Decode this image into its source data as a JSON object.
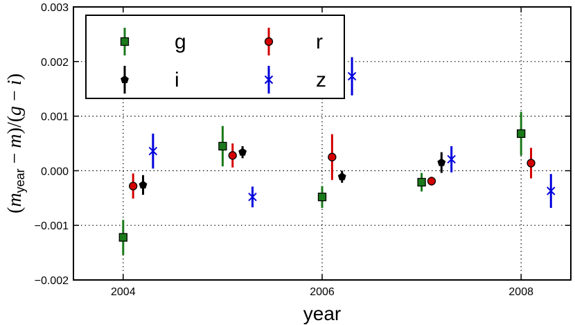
{
  "chart_data": {
    "type": "scatter",
    "title": "",
    "xlabel": "year",
    "ylabel": "(m_year − m)/(g − i)",
    "ylabel_parts": {
      "open": "(",
      "m1": "m",
      "sub": "year",
      "minus1": " − ",
      "m2": "m",
      "mid": ")/(",
      "g": "g",
      "minus2": " − ",
      "i": "i",
      "close": ")"
    },
    "xlim": [
      2003.5,
      2008.5
    ],
    "ylim": [
      -0.002,
      0.003
    ],
    "xticks": [
      2004,
      2006,
      2008
    ],
    "xtick_labels": [
      "2004",
      "2006",
      "2008"
    ],
    "yticks": [
      -0.002,
      -0.001,
      0.0,
      0.001,
      0.002,
      0.003
    ],
    "ytick_labels": [
      "−0.002",
      "−0.001",
      "0.000",
      "0.001",
      "0.002",
      "0.003"
    ],
    "grid": true,
    "grid_style": "dotted",
    "legend": "top-left",
    "series": [
      {
        "name": "g",
        "color": "#1a7a1a",
        "marker": "square",
        "x": [
          2004.0,
          2005.0,
          2006.0,
          2007.0,
          2008.0
        ],
        "y": [
          -0.00122,
          0.00045,
          -0.00048,
          -0.00021,
          0.00068
        ],
        "yerr": [
          0.00032,
          0.00037,
          0.0002,
          0.00017,
          0.0004
        ]
      },
      {
        "name": "r",
        "color": "#d40000",
        "marker": "circle",
        "x": [
          2004.1,
          2005.1,
          2006.1,
          2007.1,
          2008.1
        ],
        "y": [
          -0.00028,
          0.00028,
          0.00025,
          -0.00019,
          0.00014
        ],
        "yerr": [
          0.00023,
          0.00022,
          0.00042,
          8e-05,
          0.00028
        ]
      },
      {
        "name": "i",
        "color": "#000000",
        "marker": "pentagon",
        "x": [
          2004.2,
          2005.2,
          2006.2,
          2007.2,
          2008.2
        ],
        "y": [
          -0.00026,
          0.00034,
          -0.00011,
          0.00015,
          null
        ],
        "yerr": [
          0.00018,
          0.00011,
          0.00011,
          0.00019,
          null
        ]
      },
      {
        "name": "z",
        "color": "#0000dd",
        "marker": "x",
        "x": [
          2004.3,
          2005.3,
          2006.3,
          2007.3,
          2008.3
        ],
        "y": [
          0.00036,
          -0.00048,
          0.00173,
          0.00021,
          -0.00037
        ],
        "yerr": [
          0.00032,
          0.00019,
          0.00035,
          0.00024,
          0.00031
        ]
      }
    ]
  }
}
